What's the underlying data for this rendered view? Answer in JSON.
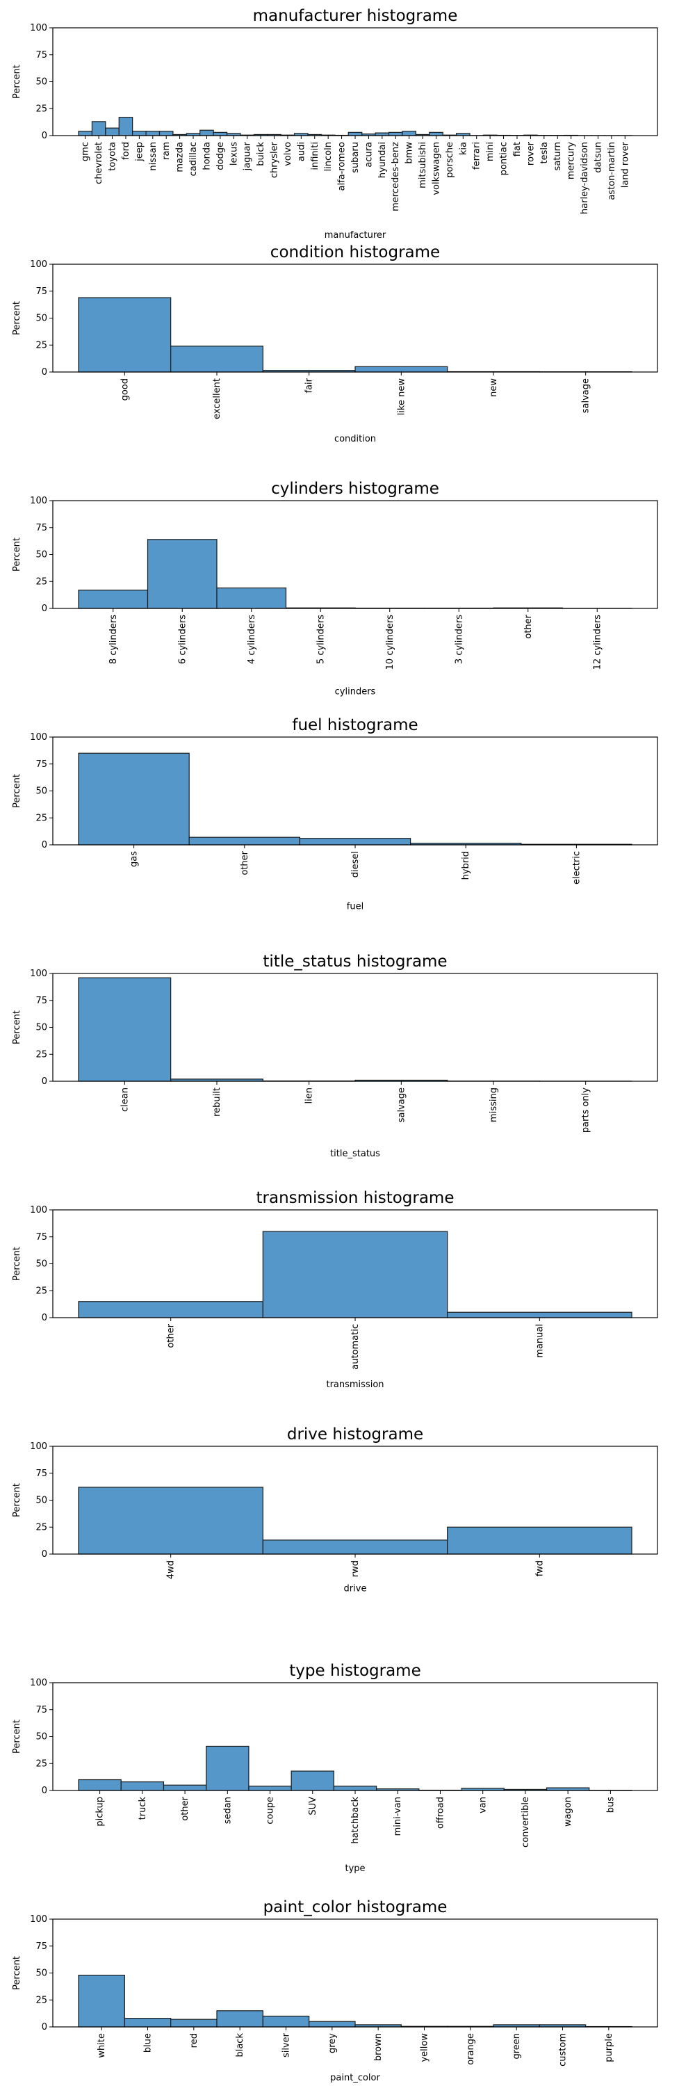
{
  "chart_data": [
    {
      "type": "bar",
      "title": "manufacturer histograme",
      "xlabel": "manufacturer",
      "ylabel": "Percent",
      "ylim": [
        0,
        100
      ],
      "yticks": [
        "0",
        "25",
        "50",
        "75",
        "100"
      ],
      "categories": [
        "gmc",
        "chevrolet",
        "toyota",
        "ford",
        "jeep",
        "nissan",
        "ram",
        "mazda",
        "cadillac",
        "honda",
        "dodge",
        "lexus",
        "jaguar",
        "buick",
        "chrysler",
        "volvo",
        "audi",
        "infiniti",
        "lincoln",
        "alfa-romeo",
        "subaru",
        "acura",
        "hyundai",
        "mercedes-benz",
        "bmw",
        "mitsubishi",
        "volkswagen",
        "porsche",
        "kia",
        "ferrari",
        "mini",
        "pontiac",
        "fiat",
        "rover",
        "tesla",
        "saturn",
        "mercury",
        "harley-davidson",
        "datsun",
        "aston-martin",
        "land rover"
      ],
      "values": [
        4,
        13,
        7,
        17,
        4,
        4,
        4,
        1,
        2,
        5,
        3,
        2,
        0.5,
        1,
        1,
        0.5,
        2,
        1,
        0.5,
        0.3,
        3,
        1.5,
        2.5,
        3,
        4,
        1,
        3,
        0.5,
        2,
        0.1,
        0.5,
        0.3,
        0.2,
        0.5,
        0.2,
        0.2,
        0.3,
        0.05,
        0.05,
        0.05,
        0.05
      ]
    },
    {
      "type": "bar",
      "title": "condition histograme",
      "xlabel": "condition",
      "ylabel": "Percent",
      "ylim": [
        0,
        100
      ],
      "yticks": [
        "0",
        "25",
        "50",
        "75",
        "100"
      ],
      "categories": [
        "good",
        "excellent",
        "fair",
        "like new",
        "new",
        "salvage"
      ],
      "values": [
        69,
        24,
        1.5,
        5,
        0.3,
        0.2
      ]
    },
    {
      "type": "bar",
      "title": "cylinders histograme",
      "xlabel": "cylinders",
      "ylabel": "Percent",
      "ylim": [
        0,
        100
      ],
      "yticks": [
        "0",
        "25",
        "50",
        "75",
        "100"
      ],
      "categories": [
        "8 cylinders",
        "6 cylinders",
        "4 cylinders",
        "5 cylinders",
        "10 cylinders",
        "3 cylinders",
        "other",
        "12 cylinders"
      ],
      "values": [
        17,
        64,
        19,
        0.5,
        0.3,
        0.3,
        0.5,
        0.1
      ]
    },
    {
      "type": "bar",
      "title": "fuel histograme",
      "xlabel": "fuel",
      "ylabel": "Percent",
      "ylim": [
        0,
        100
      ],
      "yticks": [
        "0",
        "25",
        "50",
        "75",
        "100"
      ],
      "categories": [
        "gas",
        "other",
        "diesel",
        "hybrid",
        "electric"
      ],
      "values": [
        85,
        7,
        6,
        1.5,
        0.5
      ]
    },
    {
      "type": "bar",
      "title": "title_status histograme",
      "xlabel": "title_status",
      "ylabel": "Percent",
      "ylim": [
        0,
        100
      ],
      "yticks": [
        "0",
        "25",
        "50",
        "75",
        "100"
      ],
      "categories": [
        "clean",
        "rebuilt",
        "lien",
        "salvage",
        "missing",
        "parts only"
      ],
      "values": [
        96,
        2,
        0.3,
        1,
        0.2,
        0.1
      ]
    },
    {
      "type": "bar",
      "title": "transmission histograme",
      "xlabel": "transmission",
      "ylabel": "Percent",
      "ylim": [
        0,
        100
      ],
      "yticks": [
        "0",
        "25",
        "50",
        "75",
        "100"
      ],
      "categories": [
        "other",
        "automatic",
        "manual"
      ],
      "values": [
        15,
        80,
        5
      ]
    },
    {
      "type": "bar",
      "title": "drive histograme",
      "xlabel": "drive",
      "ylabel": "Percent",
      "ylim": [
        0,
        100
      ],
      "yticks": [
        "0",
        "25",
        "50",
        "75",
        "100"
      ],
      "categories": [
        "4wd",
        "rwd",
        "fwd"
      ],
      "values": [
        62,
        13,
        25
      ]
    },
    {
      "type": "bar",
      "title": "type histograme",
      "xlabel": "type",
      "ylabel": "Percent",
      "ylim": [
        0,
        100
      ],
      "yticks": [
        "0",
        "25",
        "50",
        "75",
        "100"
      ],
      "categories": [
        "pickup",
        "truck",
        "other",
        "sedan",
        "coupe",
        "SUV",
        "hatchback",
        "mini-van",
        "offroad",
        "van",
        "convertible",
        "wagon",
        "bus"
      ],
      "values": [
        10,
        8,
        5,
        41,
        4,
        18,
        4,
        1.5,
        0.3,
        2,
        1,
        2.5,
        0.2
      ]
    },
    {
      "type": "bar",
      "title": "paint_color histograme",
      "xlabel": "paint_color",
      "ylabel": "Percent",
      "ylim": [
        0,
        100
      ],
      "yticks": [
        "0",
        "25",
        "50",
        "75",
        "100"
      ],
      "categories": [
        "white",
        "blue",
        "red",
        "black",
        "silver",
        "grey",
        "brown",
        "yellow",
        "orange",
        "green",
        "custom",
        "purple"
      ],
      "values": [
        48,
        8,
        7,
        15,
        10,
        5,
        2,
        0.5,
        0.5,
        2,
        2,
        0.3
      ]
    }
  ]
}
